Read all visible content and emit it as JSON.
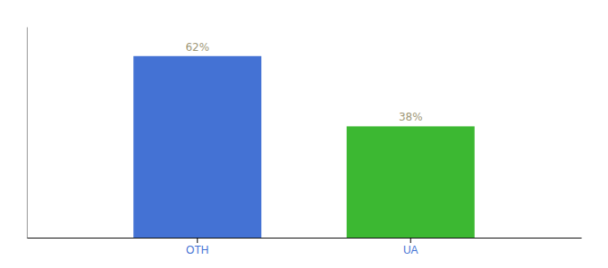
{
  "chart_data": {
    "type": "bar",
    "categories": [
      "OTH",
      "UA"
    ],
    "values": [
      62,
      38
    ],
    "value_labels": [
      "62%",
      "38%"
    ],
    "colors": [
      "#4472d4",
      "#3cb832"
    ],
    "ylim": [
      0,
      72
    ],
    "data_labels": true,
    "tick_labels": "x"
  }
}
